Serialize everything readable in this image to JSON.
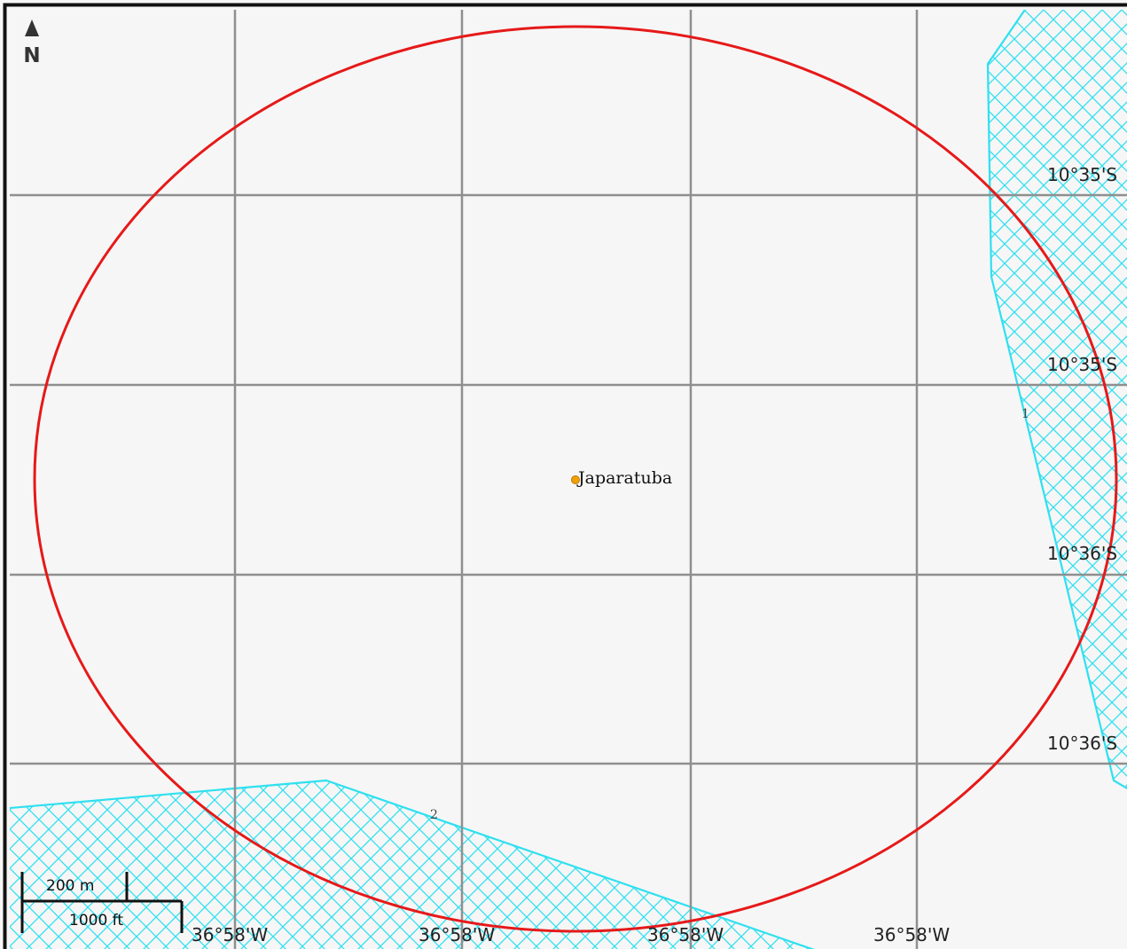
{
  "map": {
    "place_name": "Japaratuba",
    "north_label": "N",
    "colors": {
      "background": "#f6f6f6",
      "frame": "#111111",
      "grid": "#8f8f8f",
      "radius_circle": "#e61919",
      "hatched_area": "#2fe0f0",
      "place_marker": "#f0a000"
    },
    "icons": {
      "north_arrow": "north-arrow-icon",
      "place_marker": "place-marker-icon"
    },
    "latitude_labels": [
      "10°35'S",
      "10°35'S",
      "10°36'S",
      "10°36'S"
    ],
    "longitude_labels": [
      "36°58'W",
      "36°58'W",
      "36°58'W",
      "36°58'W"
    ],
    "feature_labels": {
      "east_area": "1",
      "south_area": "2"
    },
    "scale_bar": {
      "metric_label": "200 m",
      "imperial_label": "1000 ft"
    }
  }
}
